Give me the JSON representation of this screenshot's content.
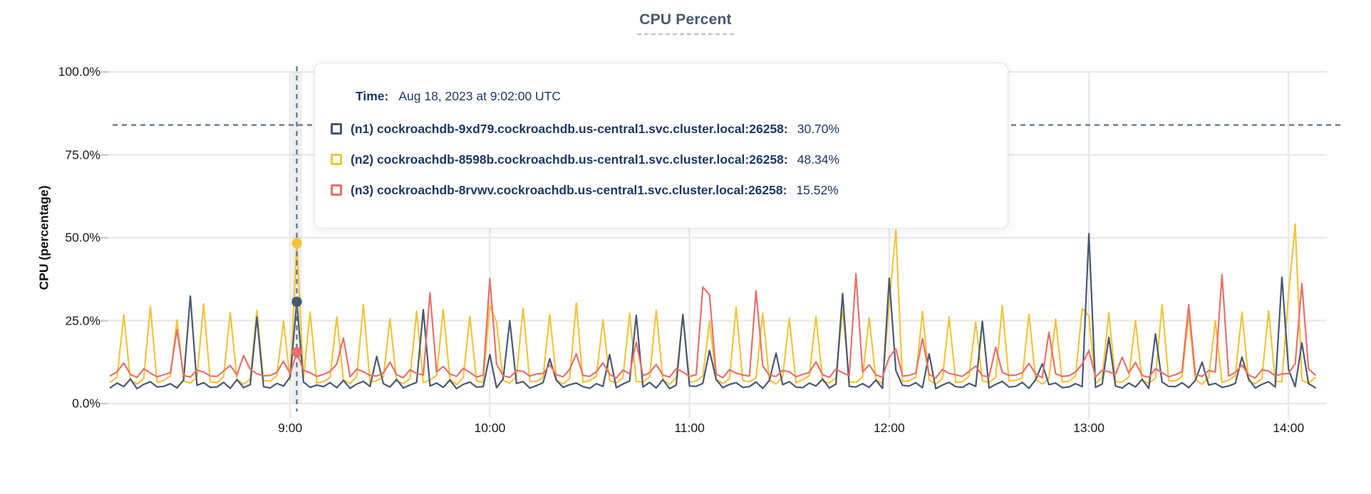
{
  "chart_data": {
    "type": "line",
    "title": "CPU Percent",
    "ylabel": "CPU (percentage)",
    "ylim": [
      0,
      100
    ],
    "grid": true,
    "legend_position": "tooltip-overlay",
    "yticks": [
      {
        "pct": 0,
        "label": "0.0%"
      },
      {
        "pct": 25,
        "label": "25.0%"
      },
      {
        "pct": 50,
        "label": "50.0%"
      },
      {
        "pct": 75,
        "label": "75.0%"
      },
      {
        "pct": 100,
        "label": "100.0%"
      }
    ],
    "xticks": [
      {
        "min": 540,
        "label": "9:00"
      },
      {
        "min": 600,
        "label": "10:00"
      },
      {
        "min": 660,
        "label": "11:00"
      },
      {
        "min": 720,
        "label": "12:00"
      },
      {
        "min": 780,
        "label": "13:00"
      },
      {
        "min": 840,
        "label": "14:00"
      }
    ],
    "x_range_min": [
      486,
      850
    ],
    "x_start_min": 486,
    "x_step_min": 2,
    "guide_line_pct": 84,
    "crosshair": {
      "time_min": 542
    },
    "series": [
      {
        "id": "n2",
        "name": "(n2) cockroachdb-8598b.cockroachdb.us-central1.svc.cluster.local:26258",
        "color": "#F5C33B",
        "values": [
          6.5,
          8.0,
          26.8,
          7.1,
          5.9,
          7.6,
          29.3,
          6.4,
          7.0,
          8.3,
          25.2,
          6.8,
          6.2,
          7.9,
          30.1,
          6.6,
          6.3,
          8.1,
          27.5,
          7.3,
          5.8,
          7.4,
          28.2,
          6.9,
          6.8,
          8.4,
          24.9,
          7.0,
          48.3,
          7.7,
          27.6,
          6.2,
          6.6,
          7.8,
          26.1,
          7.2,
          6.0,
          8.2,
          29.8,
          6.5,
          6.9,
          8.0,
          25.6,
          6.7,
          6.1,
          7.5,
          27.9,
          6.3,
          7.1,
          8.5,
          28.4,
          7.4,
          5.7,
          7.8,
          26.3,
          6.8,
          6.4,
          29.5,
          24.7,
          7.0,
          6.2,
          8.1,
          28.8,
          6.6,
          6.7,
          7.9,
          26.9,
          7.2,
          5.9,
          7.6,
          30.4,
          6.4,
          7.0,
          8.2,
          25.3,
          6.9,
          6.3,
          7.7,
          27.2,
          6.7,
          6.5,
          8.0,
          28.1,
          7.1,
          5.8,
          7.9,
          26.6,
          6.5,
          6.8,
          8.3,
          24.8,
          7.3,
          6.1,
          7.4,
          29.1,
          6.9,
          6.6,
          7.7,
          27.3,
          7.0,
          5.9,
          8.0,
          25.8,
          6.3,
          7.2,
          8.4,
          26.4,
          6.8,
          6.2,
          7.8,
          28.5,
          6.6,
          6.4,
          8.1,
          25.9,
          7.2,
          6.0,
          30.2,
          52.3,
          6.7,
          6.9,
          7.9,
          27.8,
          7.1,
          5.8,
          7.6,
          26.1,
          6.4,
          6.6,
          8.2,
          24.6,
          6.9,
          6.3,
          8.0,
          29.6,
          6.8,
          7.0,
          7.8,
          27.0,
          7.3,
          5.9,
          7.5,
          25.5,
          6.5,
          6.7,
          8.3,
          28.7,
          26.4,
          6.1,
          7.9,
          27.4,
          6.6,
          6.5,
          8.0,
          25.1,
          7.0,
          6.2,
          7.7,
          29.9,
          6.9,
          6.8,
          8.1,
          26.7,
          7.2,
          5.8,
          7.8,
          24.9,
          6.4,
          7.1,
          8.4,
          27.6,
          6.8,
          6.0,
          7.6,
          28.0,
          6.7,
          6.6,
          33.0,
          54.1,
          7.0,
          6.1,
          7.9
        ]
      },
      {
        "id": "n1",
        "name": "(n1) cockroachdb-9xd79.cockroachdb.us-central1.svc.cluster.local:26258",
        "color": "#475872",
        "values": [
          4.8,
          6.2,
          5.1,
          7.4,
          4.5,
          5.8,
          6.6,
          5.0,
          5.2,
          6.0,
          4.7,
          7.1,
          32.4,
          5.5,
          6.3,
          4.9,
          5.0,
          6.4,
          4.6,
          7.2,
          4.8,
          5.7,
          26.1,
          5.1,
          4.7,
          6.1,
          5.3,
          8.0,
          30.7,
          6.5,
          4.9,
          5.6,
          5.1,
          6.3,
          4.8,
          7.0,
          4.6,
          5.9,
          6.7,
          5.2,
          14.2,
          6.0,
          5.0,
          7.3,
          4.7,
          5.6,
          6.4,
          28.3,
          5.3,
          6.2,
          4.9,
          7.1,
          4.5,
          5.8,
          6.5,
          5.0,
          5.1,
          14.8,
          4.8,
          7.4,
          25.0,
          6.1,
          6.6,
          4.7,
          5.4,
          6.3,
          13.5,
          7.0,
          4.9,
          5.7,
          6.2,
          5.1,
          4.6,
          6.0,
          5.2,
          14.8,
          4.8,
          5.9,
          6.8,
          26.6,
          5.0,
          6.4,
          4.7,
          7.2,
          4.5,
          5.6,
          26.9,
          5.3,
          5.2,
          6.1,
          16.0,
          7.3,
          4.8,
          5.8,
          6.3,
          4.9,
          5.1,
          6.5,
          4.6,
          7.0,
          15.2,
          5.7,
          6.6,
          5.0,
          4.8,
          6.2,
          5.3,
          7.4,
          4.7,
          5.9,
          33.2,
          5.2,
          5.0,
          6.0,
          4.9,
          7.1,
          4.6,
          37.8,
          10.0,
          5.5,
          5.3,
          6.3,
          4.8,
          15.0,
          4.5,
          5.6,
          6.4,
          5.1,
          4.9,
          6.1,
          5.2,
          24.8,
          4.7,
          5.8,
          6.7,
          5.0,
          5.2,
          6.4,
          4.6,
          7.2,
          12.0,
          5.7,
          6.2,
          4.8,
          5.0,
          6.0,
          5.1,
          51.2,
          4.9,
          5.9,
          20.0,
          5.3,
          4.7,
          6.2,
          5.0,
          7.3,
          4.6,
          21.0,
          6.5,
          5.2,
          5.1,
          6.3,
          4.8,
          7.0,
          12.5,
          5.6,
          6.1,
          4.9,
          5.3,
          6.1,
          14.0,
          7.4,
          4.7,
          5.8,
          6.6,
          5.0,
          38.1,
          10.2,
          5.1,
          18.3,
          6.0,
          4.8
        ]
      },
      {
        "id": "n3",
        "name": "(n3) cockroachdb-8rvwv.cockroachdb.us-central1.svc.cluster.local:26258",
        "color": "#EB6F6A",
        "values": [
          8.4,
          9.6,
          12.2,
          8.8,
          7.9,
          10.5,
          9.2,
          8.1,
          8.7,
          9.3,
          22.3,
          8.5,
          8.0,
          10.1,
          9.5,
          8.3,
          8.2,
          9.8,
          11.5,
          8.6,
          14.5,
          10.3,
          9.0,
          8.4,
          8.5,
          9.4,
          12.8,
          9.0,
          15.5,
          10.0,
          9.3,
          8.2,
          8.8,
          9.7,
          11.9,
          19.8,
          8.1,
          10.4,
          9.6,
          8.5,
          8.3,
          9.2,
          12.5,
          8.7,
          7.8,
          10.2,
          9.1,
          8.6,
          33.4,
          9.5,
          11.2,
          8.9,
          8.2,
          10.6,
          9.4,
          8.0,
          8.6,
          37.6,
          12.0,
          8.4,
          7.9,
          10.0,
          9.7,
          8.3,
          8.9,
          9.1,
          11.6,
          8.7,
          8.1,
          10.3,
          15.0,
          8.5,
          8.2,
          9.6,
          12.3,
          8.8,
          7.7,
          10.1,
          9.0,
          18.5,
          8.4,
          9.3,
          11.8,
          8.6,
          8.0,
          10.5,
          9.5,
          8.2,
          8.7,
          35.1,
          32.8,
          8.9,
          7.8,
          10.2,
          9.2,
          8.6,
          8.3,
          34.0,
          11.4,
          8.5,
          8.2,
          10.0,
          9.6,
          8.1,
          8.8,
          9.4,
          12.6,
          8.7,
          7.9,
          10.4,
          9.3,
          8.4,
          39.2,
          9.5,
          11.7,
          8.6,
          8.0,
          14.0,
          16.5,
          8.3,
          8.5,
          9.2,
          19.6,
          8.8,
          7.7,
          10.3,
          9.1,
          8.7,
          8.2,
          9.7,
          11.3,
          8.4,
          8.1,
          17.0,
          9.4,
          8.5,
          8.6,
          9.3,
          12.1,
          8.9,
          7.8,
          21.5,
          9.0,
          8.2,
          8.4,
          9.5,
          11.9,
          16.0,
          8.0,
          10.1,
          9.6,
          8.8,
          14.0,
          9.2,
          12.4,
          8.5,
          7.9,
          10.5,
          9.3,
          8.1,
          8.7,
          9.6,
          29.8,
          8.8,
          8.2,
          10.0,
          9.5,
          39.0,
          8.3,
          9.4,
          11.6,
          8.6,
          7.7,
          10.2,
          9.8,
          8.4,
          8.9,
          9.1,
          12.0,
          36.2,
          10.5,
          8.6
        ]
      }
    ]
  },
  "tooltip": {
    "time_label": "Time:",
    "time_value": "Aug 18, 2023 at 9:02:00 UTC",
    "rows": [
      {
        "name": "(n1) cockroachdb-9xd79.cockroachdb.us-central1.svc.cluster.local:26258:",
        "value": "30.70%",
        "color": "#475872"
      },
      {
        "name": "(n2) cockroachdb-8598b.cockroachdb.us-central1.svc.cluster.local:26258:",
        "value": "48.34%",
        "color": "#F5C33B"
      },
      {
        "name": "(n3) cockroachdb-8rvwv.cockroachdb.us-central1.svc.cluster.local:26258:",
        "value": "15.52%",
        "color": "#EB6F6A"
      }
    ]
  }
}
